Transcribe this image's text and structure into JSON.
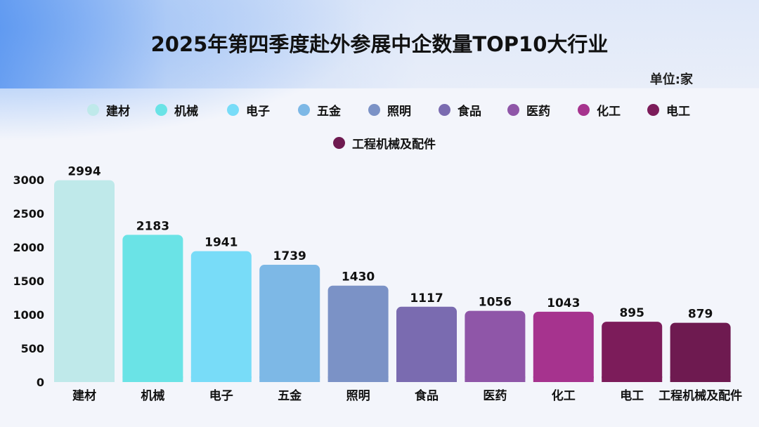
{
  "title": "2025年第四季度赴外参展中企数量TOP10大行业",
  "unit_label": "单位:家",
  "chart_data": {
    "type": "bar",
    "categories": [
      "建材",
      "机械",
      "电子",
      "五金",
      "照明",
      "食品",
      "医药",
      "化工",
      "电工",
      "工程机械及配件"
    ],
    "values": [
      2994,
      2183,
      1941,
      1739,
      1430,
      1117,
      1056,
      1043,
      895,
      879
    ],
    "colors": [
      "#bfe9ea",
      "#6ae3e6",
      "#78dcf8",
      "#7db8e6",
      "#7b92c6",
      "#7a6bb0",
      "#8f56a8",
      "#a6338e",
      "#7c1c5a",
      "#6e1a50"
    ],
    "ylim": [
      0,
      3000
    ],
    "yticks": [
      0,
      500,
      1000,
      1500,
      2000,
      2500,
      3000
    ],
    "legend": true,
    "grid": false
  }
}
